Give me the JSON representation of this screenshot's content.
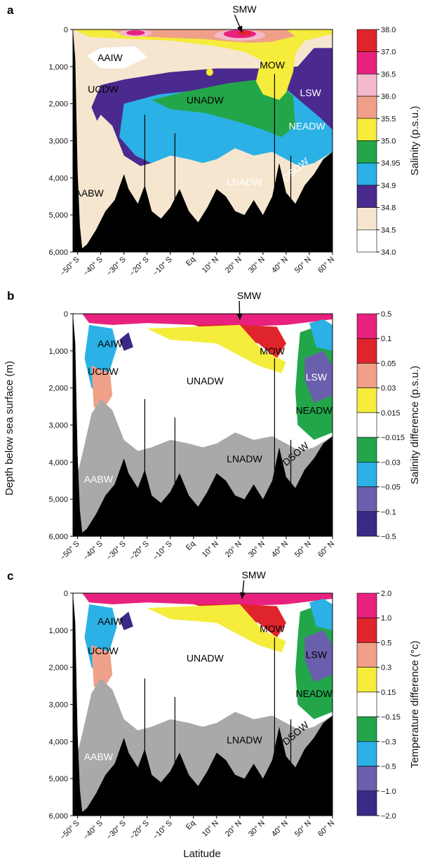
{
  "figure": {
    "ylabel": "Depth below sea surface (m)",
    "xlabel": "Latitude"
  },
  "chart_data": [
    {
      "type": "heatmap",
      "panel": "a",
      "colorbar_label": "Salinity (p.s.u.)",
      "colorbar_ticks": [
        "38.0",
        "37.0",
        "36.5",
        "36.0",
        "35.5",
        "35.0",
        "34.95",
        "34.9",
        "34.8",
        "34.5",
        "34.0"
      ],
      "colorbar_colors": [
        "#e0242b",
        "#e8217f",
        "#f4b8cc",
        "#f0a088",
        "#f5ec3c",
        "#23a64a",
        "#2bb1e6",
        "#4b2a8f",
        "#f6e6cf",
        "#ffffff"
      ],
      "x_ticks": [
        "−50° S",
        "−40° S",
        "−30° S",
        "−20° S",
        "−10° S",
        "Eq",
        "10° N",
        "20° N",
        "30° N",
        "40° N",
        "50° N",
        "60° N"
      ],
      "y_ticks": [
        "0",
        "1,000",
        "2,000",
        "3,000",
        "4,000",
        "5,000",
        "6,000"
      ],
      "xlim": [
        -52,
        60
      ],
      "ylim": [
        6000,
        0
      ],
      "water_masses": [
        {
          "label": "SMW",
          "lat": 22,
          "depth": -450,
          "color": "#000000",
          "arrow_to": [
            21,
            80
          ]
        },
        {
          "label": "AAIW",
          "lat": -36,
          "depth": 850,
          "color": "#000000"
        },
        {
          "label": "MOW",
          "lat": 34,
          "depth": 1050,
          "color": "#000000"
        },
        {
          "label": "UCDW",
          "lat": -39,
          "depth": 1700,
          "color": "#000000"
        },
        {
          "label": "UNADW",
          "lat": 5,
          "depth": 2000,
          "color": "#000000"
        },
        {
          "label": "LSW",
          "lat": 50.5,
          "depth": 1800,
          "color": "#ffffff"
        },
        {
          "label": "NEADW",
          "lat": 49,
          "depth": 2700,
          "color": "#ffffff"
        },
        {
          "label": "DSOW",
          "lat": 45,
          "depth": 3850,
          "color": "#ffffff",
          "rotate": -40
        },
        {
          "label": "LNADW",
          "lat": 22,
          "depth": 4200,
          "color": "#ffffff"
        },
        {
          "label": "AABW",
          "lat": -45,
          "depth": 4500,
          "color": "#000000"
        }
      ]
    },
    {
      "type": "heatmap",
      "panel": "b",
      "colorbar_label": "Salinity difference (p.s.u.)",
      "colorbar_ticks": [
        "0.5",
        "0.1",
        "0.05",
        "0.03",
        "0.015",
        "−0.015",
        "−0.03",
        "−0.05",
        "−0.1",
        "−0.5"
      ],
      "colorbar_colors": [
        "#e8217f",
        "#e0242b",
        "#f0a088",
        "#f5ec3c",
        "#ffffff",
        "#23a64a",
        "#2bb1e6",
        "#6a5fad",
        "#3a2a86"
      ],
      "x_ticks": [
        "−50° S",
        "−40° S",
        "−30° S",
        "−20° S",
        "−10° S",
        "Eq",
        "10° N",
        "20° N",
        "30° N",
        "40° N",
        "50° N",
        "60° N"
      ],
      "y_ticks": [
        "0",
        "1,000",
        "2,000",
        "3,000",
        "4,000",
        "5,000",
        "6,000"
      ],
      "xlim": [
        -52,
        60
      ],
      "ylim": [
        6000,
        0
      ],
      "water_masses": [
        {
          "label": "SMW",
          "lat": 24,
          "depth": -400,
          "color": "#000000",
          "arrow_to": [
            20,
            170
          ]
        },
        {
          "label": "AAIW",
          "lat": -36,
          "depth": 900,
          "color": "#000000"
        },
        {
          "label": "MOW",
          "lat": 34,
          "depth": 1100,
          "color": "#000000"
        },
        {
          "label": "UCDW",
          "lat": -39,
          "depth": 1650,
          "color": "#000000"
        },
        {
          "label": "UNADW",
          "lat": 5,
          "depth": 1900,
          "color": "#000000"
        },
        {
          "label": "LSW",
          "lat": 53,
          "depth": 1800,
          "color": "#ffffff"
        },
        {
          "label": "NEADW",
          "lat": 52,
          "depth": 2700,
          "color": "#000000"
        },
        {
          "label": "DSOW",
          "lat": 45,
          "depth": 3850,
          "color": "#000000",
          "rotate": -40
        },
        {
          "label": "LNADW",
          "lat": 22,
          "depth": 4000,
          "color": "#000000"
        },
        {
          "label": "AABW",
          "lat": -41,
          "depth": 4550,
          "color": "#ffffff"
        }
      ]
    },
    {
      "type": "heatmap",
      "panel": "c",
      "colorbar_label": "Temperature difference (°c)",
      "colorbar_ticks": [
        "2.0",
        "1.0",
        "0.5",
        "0.3",
        "0.15",
        "−0.15",
        "−0.3",
        "−0.5",
        "−1.0",
        "−2.0"
      ],
      "colorbar_colors": [
        "#e8217f",
        "#e0242b",
        "#f0a088",
        "#f5ec3c",
        "#ffffff",
        "#23a64a",
        "#2bb1e6",
        "#6a5fad",
        "#3a2a86"
      ],
      "x_ticks": [
        "−50° S",
        "−40° S",
        "−30° S",
        "−20° S",
        "−10° S",
        "Eq",
        "10° N",
        "20° N",
        "30° N",
        "40° N",
        "50° N",
        "60° N"
      ],
      "y_ticks": [
        "0",
        "1,000",
        "2,000",
        "3,000",
        "4,000",
        "5,000",
        "6,000"
      ],
      "xlim": [
        -52,
        60
      ],
      "ylim": [
        6000,
        0
      ],
      "water_masses": [
        {
          "label": "SMW",
          "lat": 26,
          "depth": -400,
          "color": "#000000",
          "arrow_to": [
            21,
            150
          ]
        },
        {
          "label": "AAIW",
          "lat": -36,
          "depth": 850,
          "color": "#000000"
        },
        {
          "label": "MOW",
          "lat": 34,
          "depth": 1050,
          "color": "#000000"
        },
        {
          "label": "UCDW",
          "lat": -39,
          "depth": 1650,
          "color": "#000000"
        },
        {
          "label": "UNADW",
          "lat": 5,
          "depth": 1850,
          "color": "#000000"
        },
        {
          "label": "LSW",
          "lat": 53,
          "depth": 1750,
          "color": "#000000"
        },
        {
          "label": "NEADW",
          "lat": 52,
          "depth": 2800,
          "color": "#000000"
        },
        {
          "label": "DSOW",
          "lat": 45,
          "depth": 3850,
          "color": "#000000",
          "rotate": -40
        },
        {
          "label": "LNADW",
          "lat": 22,
          "depth": 4050,
          "color": "#000000"
        },
        {
          "label": "AABW",
          "lat": -41,
          "depth": 4500,
          "color": "#ffffff"
        }
      ]
    }
  ]
}
